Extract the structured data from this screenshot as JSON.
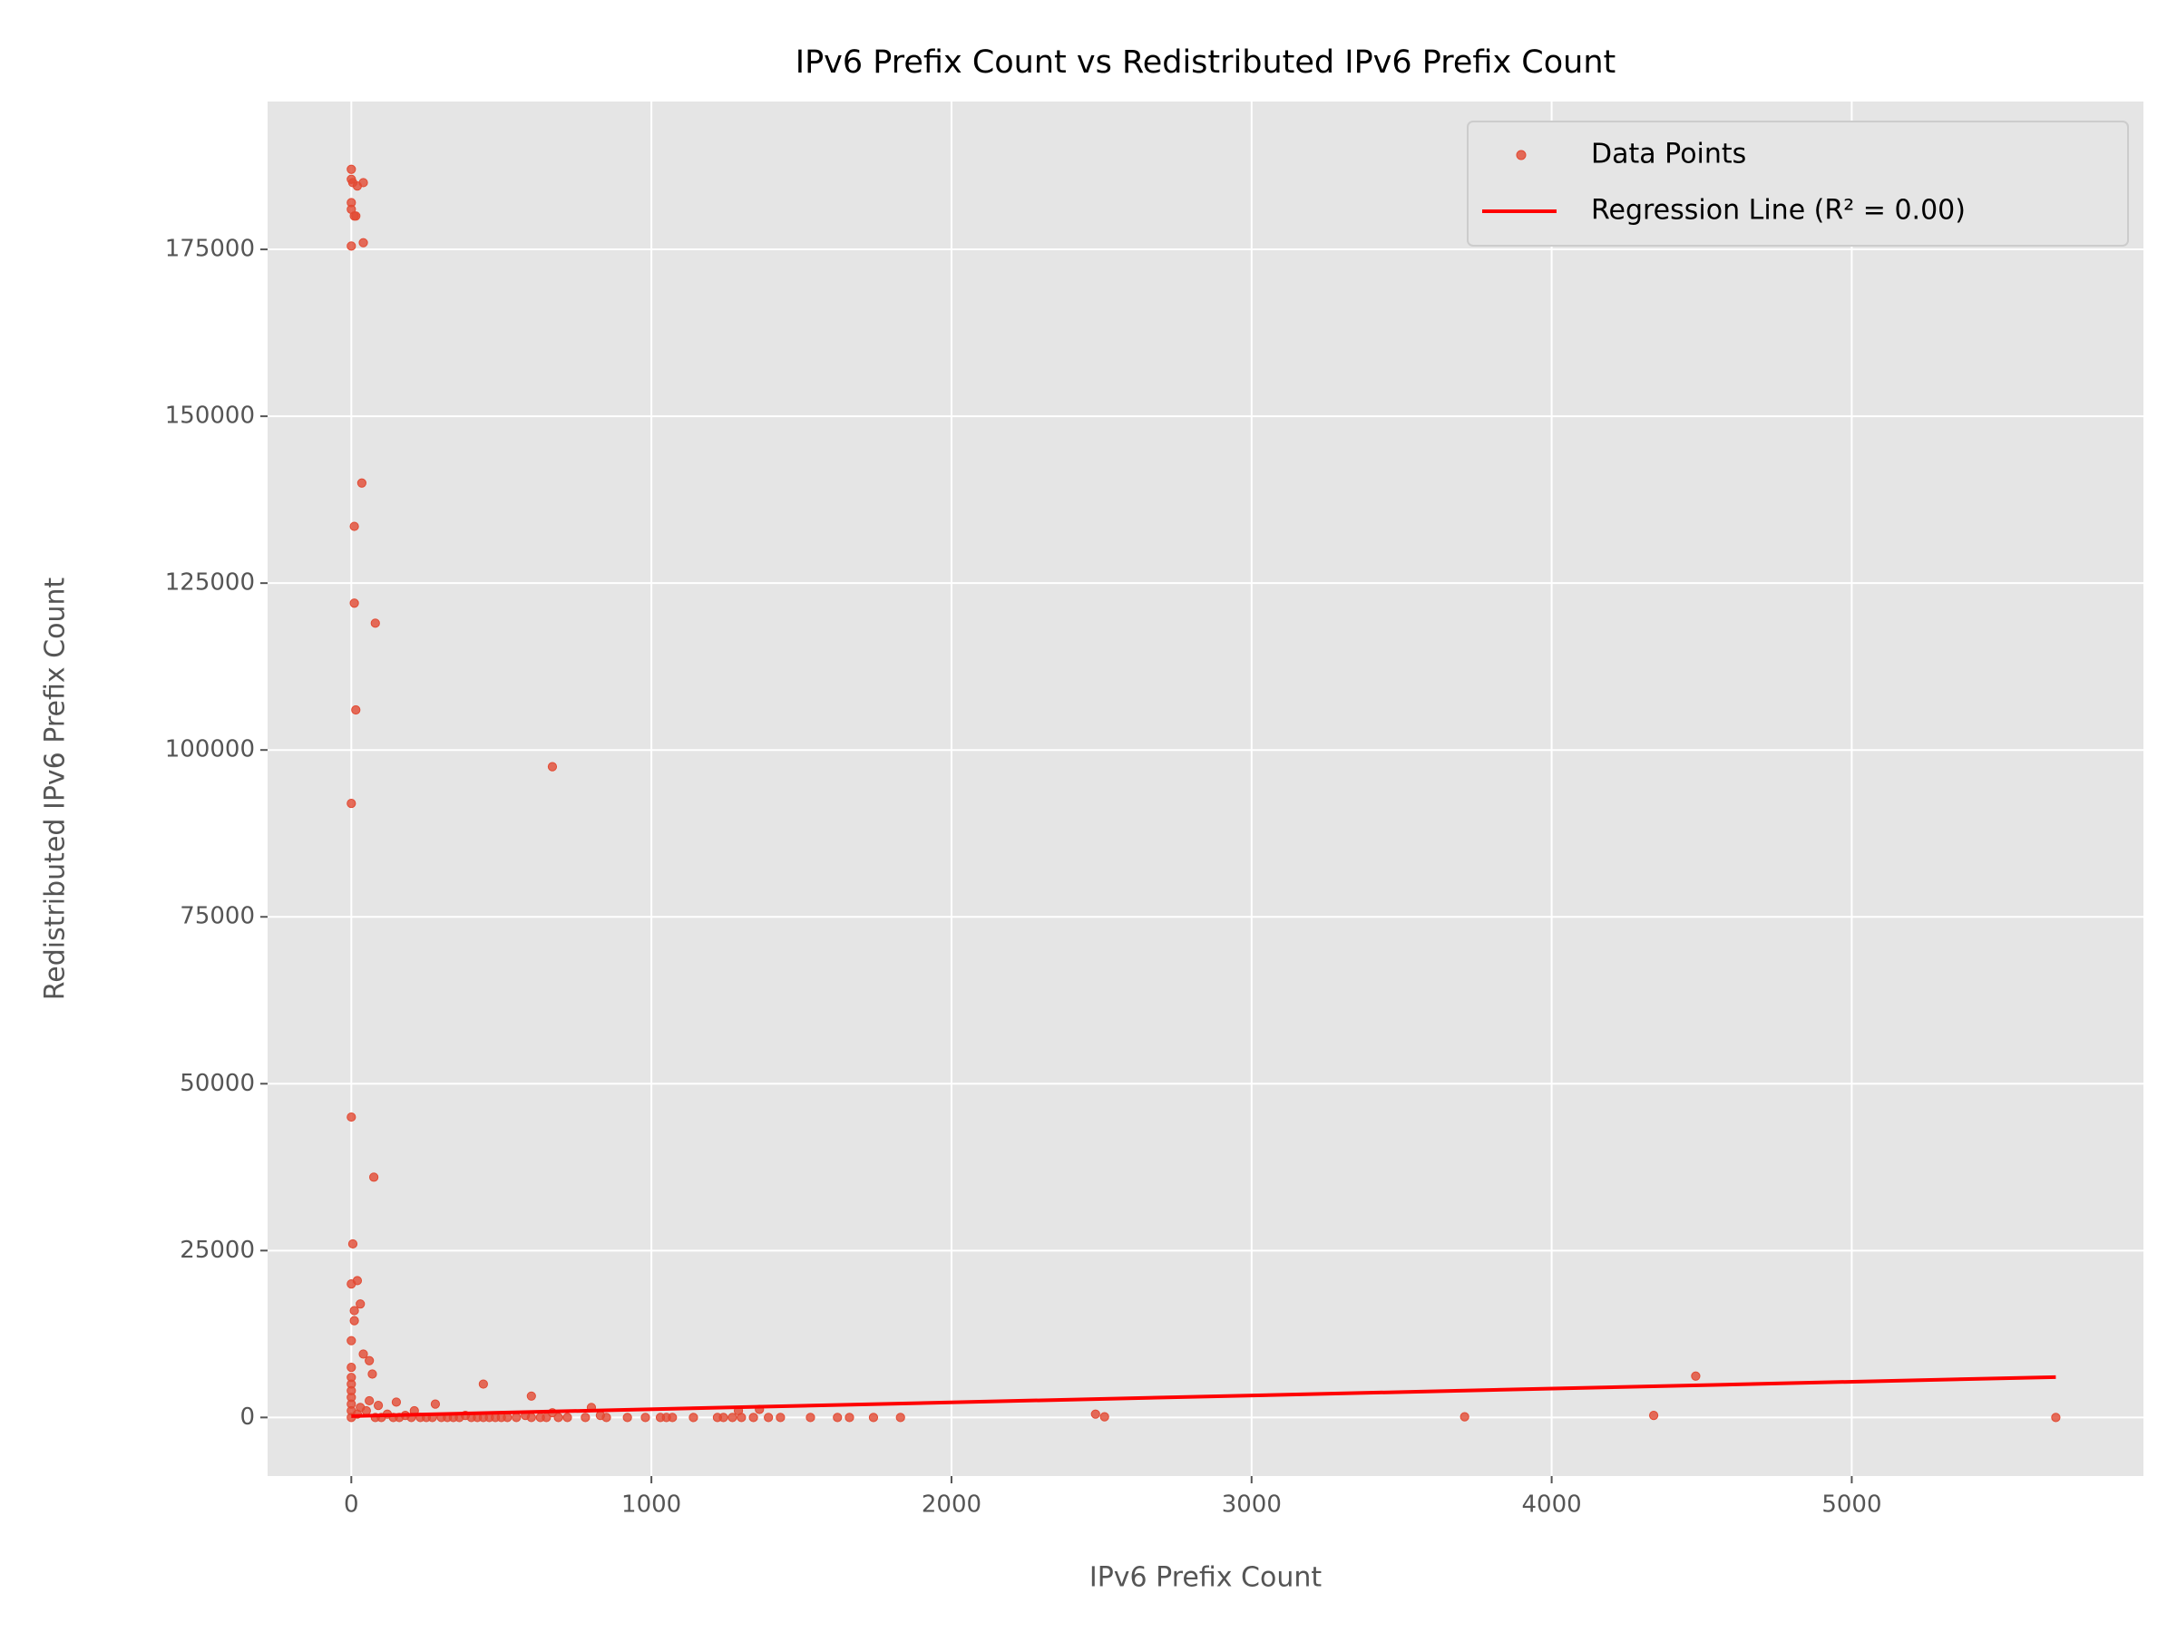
{
  "chart_data": {
    "type": "scatter",
    "title": "IPv6 Prefix Count vs Redistributed IPv6 Prefix Count",
    "x_label": "IPv6 Prefix Count",
    "y_label": "Redistributed IPv6 Prefix Count",
    "xlim": [
      -279,
      5972
    ],
    "ylim": [
      -8781,
      197150
    ],
    "xticks": [
      0,
      1000,
      2000,
      3000,
      4000,
      5000
    ],
    "yticks": [
      0,
      25000,
      50000,
      75000,
      100000,
      125000,
      150000,
      175000
    ],
    "grid": true,
    "legend": "upper right",
    "series": [
      {
        "name": "Data Points",
        "type": "scatter",
        "color": "#e24a33",
        "x": [
          0,
          0,
          5,
          20,
          40,
          0,
          0,
          10,
          15,
          0,
          40,
          35,
          10,
          10,
          80,
          15,
          670,
          0,
          0,
          75,
          5,
          0,
          20,
          30,
          10,
          10,
          0,
          40,
          60,
          70,
          0,
          0,
          0,
          0,
          0,
          0,
          0,
          0,
          440,
          600,
          150,
          280,
          800,
          4480,
          2480,
          2510,
          3710,
          4340,
          5680,
          1830,
          1740,
          1660,
          1620,
          1530,
          1430,
          1390,
          1360,
          1340,
          1300,
          1270,
          1240,
          1220,
          1140,
          1070,
          1050,
          1030,
          980,
          920,
          850,
          830,
          780,
          720,
          690,
          670,
          650,
          630,
          600,
          580,
          550,
          520,
          500,
          480,
          460,
          440,
          420,
          400,
          380,
          360,
          340,
          320,
          300,
          270,
          250,
          230,
          210,
          200,
          180,
          160,
          140,
          120,
          100,
          90,
          80,
          60,
          50,
          30,
          20,
          1290
        ],
        "values": [
          187000,
          185500,
          185000,
          184500,
          185000,
          182000,
          181000,
          180000,
          180000,
          175500,
          176000,
          140000,
          133500,
          122000,
          119000,
          106000,
          97500,
          92000,
          45000,
          36000,
          26000,
          20000,
          20500,
          17000,
          16000,
          14500,
          11500,
          9500,
          8500,
          6500,
          7500,
          6000,
          5000,
          4000,
          3000,
          2000,
          1000,
          0,
          5000,
          3200,
          2300,
          2000,
          1500,
          6200,
          500,
          100,
          100,
          300,
          0,
          0,
          0,
          0,
          0,
          0,
          0,
          0,
          1200,
          0,
          0,
          0,
          0,
          0,
          0,
          0,
          0,
          0,
          0,
          0,
          0,
          300,
          0,
          0,
          0,
          700,
          0,
          0,
          0,
          300,
          0,
          0,
          0,
          0,
          0,
          0,
          0,
          0,
          300,
          0,
          0,
          0,
          0,
          0,
          0,
          0,
          1000,
          0,
          300,
          0,
          0,
          500,
          0,
          1800,
          0,
          2500,
          1000,
          1500,
          500,
          1000
        ]
      },
      {
        "name": "Regression Line (R² = 0.00)",
        "type": "line",
        "color": "#ff0000",
        "x": [
          0,
          5680
        ],
        "values": [
          200,
          6050
        ]
      }
    ]
  }
}
